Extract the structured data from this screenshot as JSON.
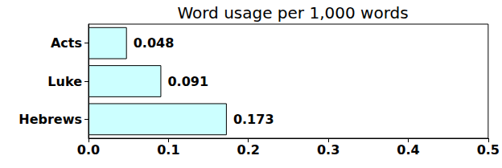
{
  "chart_data": {
    "type": "bar",
    "title": "Word usage per 1,000 words",
    "orientation": "horizontal",
    "categories": [
      "Acts",
      "Luke",
      "Hebrews"
    ],
    "values": [
      0.048,
      0.091,
      0.173
    ],
    "color": "#ccffff",
    "xlim": [
      0,
      0.5
    ],
    "xticks": [
      {
        "value": 0,
        "label": "0.0"
      },
      0.1,
      0.2,
      0.3,
      0.4,
      0.5
    ],
    "grid": false,
    "data_labels": true
  }
}
